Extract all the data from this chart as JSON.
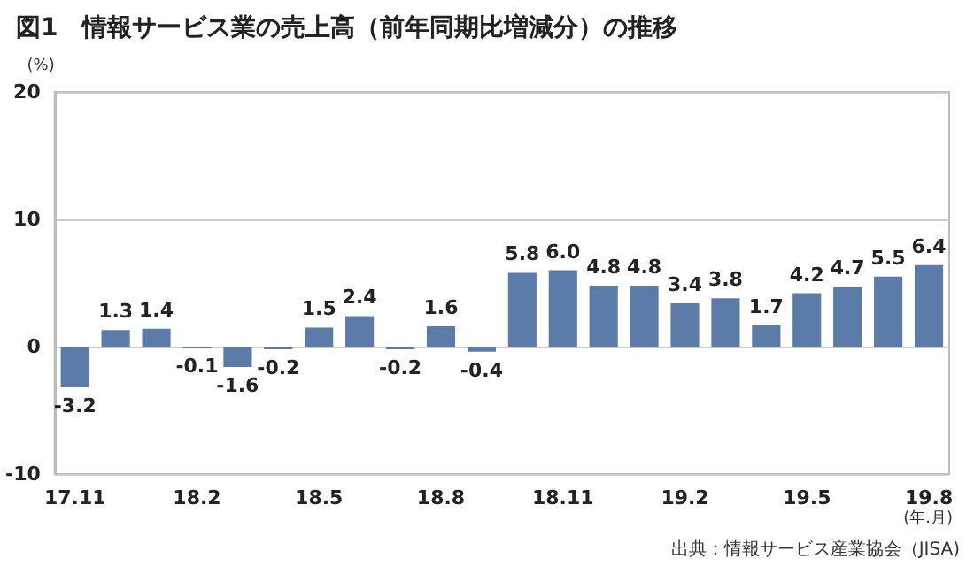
{
  "chart_data": {
    "type": "bar",
    "title": "図1　情報サービス業の売上高（前年同期比増減分）の推移",
    "ylabel": "(%)",
    "xlabel": "(年.月)",
    "annotations": [
      "出典：情報サービス産業協会（JISA)"
    ],
    "categories": [
      "17.11",
      null,
      null,
      "18.2",
      null,
      null,
      "18.5",
      null,
      null,
      "18.8",
      null,
      null,
      "18.11",
      null,
      null,
      "19.2",
      null,
      null,
      "19.5",
      null,
      null,
      "19.8"
    ],
    "values": [
      -3.2,
      1.3,
      1.4,
      -0.1,
      -1.6,
      -0.2,
      1.5,
      2.4,
      -0.2,
      1.6,
      -0.4,
      5.8,
      6.0,
      4.8,
      4.8,
      3.4,
      3.8,
      1.7,
      4.2,
      4.7,
      5.5,
      6.4
    ],
    "color": "#5b7ba8",
    "value_labels": [
      "-3.2",
      "1.3",
      "1.4",
      "-0.1",
      "-1.6",
      "-0.2",
      "1.5",
      "2.4",
      "-0.2",
      "1.6",
      "-0.4",
      "5.8",
      "6.0",
      "4.8",
      "4.8",
      "3.4",
      "3.8",
      "1.7",
      "4.2",
      "4.7",
      "5.5",
      "6.4"
    ],
    "ylim": [
      -10,
      20
    ],
    "yticks": [
      -10,
      0,
      10,
      20
    ],
    "grid": "y"
  }
}
